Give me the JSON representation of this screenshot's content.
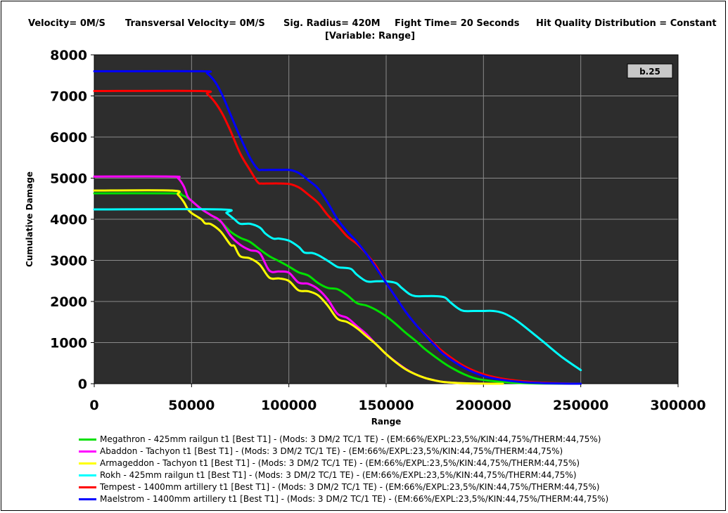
{
  "header": {
    "velocity": "Velocity= 0M/S",
    "transversal": "Transversal Velocity= 0M/S",
    "sig_radius": "Sig. Radius= 420M",
    "fight_time": "Fight Time= 20 Seconds",
    "hit_quality": "Hit Quality Distribution = Constant",
    "variable": "[Variable: Range]"
  },
  "chart_data": {
    "type": "line",
    "title": "",
    "xlabel": "Range",
    "ylabel": "Cumulative Damage",
    "xlim": [
      0,
      300000
    ],
    "ylim": [
      0,
      8000
    ],
    "xticks": [
      0,
      50000,
      100000,
      150000,
      200000,
      250000,
      300000
    ],
    "yticks": [
      0,
      1000,
      2000,
      3000,
      4000,
      5000,
      6000,
      7000,
      8000
    ],
    "grid": true,
    "legend_position": "bottom",
    "annotation": "b.25",
    "series": [
      {
        "name": "Megathron - 425mm railgun t1 [Best T1] - (Mods: 3 DM/2 TC/1 TE) - (EM:66%/EXPL:23,5%/KIN:44,75%/THERM:44,75%)",
        "color": "#00e000",
        "x": [
          0,
          40000,
          45000,
          50000,
          55000,
          60000,
          65000,
          70000,
          75000,
          80000,
          85000,
          90000,
          95000,
          100000,
          105000,
          110000,
          115000,
          120000,
          125000,
          130000,
          135000,
          140000,
          145000,
          150000,
          155000,
          160000,
          165000,
          170000,
          175000,
          180000,
          185000,
          190000,
          195000,
          200000,
          210000,
          220000,
          230000,
          240000,
          250000
        ],
        "y": [
          4630,
          4630,
          4590,
          4450,
          4250,
          4100,
          3940,
          3700,
          3550,
          3450,
          3270,
          3100,
          2980,
          2850,
          2710,
          2630,
          2450,
          2330,
          2300,
          2150,
          1960,
          1900,
          1790,
          1640,
          1450,
          1240,
          1050,
          840,
          660,
          490,
          350,
          230,
          140,
          90,
          40,
          15,
          5,
          2,
          0
        ]
      },
      {
        "name": "Abaddon - Tachyon t1 [Best T1] - (Mods: 3 DM/2 TC/1 TE) - (EM:66%/EXPL:23,5%/KIN:44,75%/THERM:44,75%)",
        "color": "#ff00ff",
        "x": [
          0,
          40000,
          43000,
          46000,
          48000,
          50000,
          55000,
          60000,
          65000,
          70000,
          75000,
          80000,
          85000,
          90000,
          95000,
          100000,
          105000,
          110000,
          115000,
          120000,
          125000,
          130000,
          135000,
          140000,
          145000,
          150000,
          155000,
          160000,
          165000,
          170000,
          175000,
          180000,
          190000,
          200000,
          210000
        ],
        "y": [
          5040,
          5040,
          5000,
          4800,
          4550,
          4450,
          4250,
          4100,
          3950,
          3600,
          3380,
          3250,
          3180,
          2750,
          2730,
          2700,
          2460,
          2430,
          2300,
          2050,
          1700,
          1600,
          1400,
          1200,
          950,
          720,
          530,
          360,
          230,
          140,
          80,
          40,
          10,
          2,
          0
        ]
      },
      {
        "name": "Armageddon - Tachyon t1 [Best T1] - (Mods: 3 DM/2 TC/1 TE) - (EM:66%/EXPL:23,5%/KIN:44,75%/THERM:44,75%)",
        "color": "#ffff00",
        "x": [
          0,
          40000,
          43000,
          46000,
          48000,
          50000,
          55000,
          57000,
          60000,
          65000,
          70000,
          72000,
          75000,
          80000,
          85000,
          90000,
          95000,
          100000,
          105000,
          110000,
          115000,
          120000,
          125000,
          130000,
          135000,
          140000,
          145000,
          150000,
          155000,
          160000,
          165000,
          170000,
          175000,
          180000,
          190000,
          200000,
          210000
        ],
        "y": [
          4700,
          4700,
          4600,
          4420,
          4250,
          4150,
          4000,
          3900,
          3880,
          3700,
          3380,
          3350,
          3100,
          3050,
          2900,
          2580,
          2560,
          2500,
          2270,
          2250,
          2150,
          1900,
          1580,
          1500,
          1350,
          1150,
          950,
          720,
          520,
          350,
          230,
          140,
          80,
          40,
          10,
          2,
          0
        ]
      },
      {
        "name": "Rokh - 425mm railgun t1 [Best T1] - (Mods: 3 DM/2 TC/1 TE) - (EM:66%/EXPL:23,5%/KIN:44,75%/THERM:44,75%)",
        "color": "#00ffff",
        "x": [
          0,
          65000,
          68000,
          72000,
          75000,
          80000,
          85000,
          88000,
          92000,
          95000,
          100000,
          105000,
          108000,
          112000,
          115000,
          120000,
          125000,
          128000,
          132000,
          135000,
          140000,
          145000,
          150000,
          155000,
          158000,
          162000,
          165000,
          170000,
          175000,
          180000,
          183000,
          187000,
          190000,
          195000,
          200000,
          205000,
          210000,
          215000,
          220000,
          230000,
          240000,
          250000
        ],
        "y": [
          4240,
          4240,
          4150,
          4000,
          3890,
          3890,
          3800,
          3650,
          3530,
          3530,
          3480,
          3330,
          3190,
          3180,
          3130,
          2990,
          2840,
          2820,
          2790,
          2650,
          2490,
          2490,
          2490,
          2450,
          2330,
          2180,
          2130,
          2130,
          2130,
          2100,
          1980,
          1830,
          1770,
          1770,
          1770,
          1770,
          1720,
          1600,
          1430,
          1050,
          660,
          330
        ]
      },
      {
        "name": "Tempest - 1400mm artillery t1 [Best T1] - (Mods: 3 DM/2 TC/1 TE) - (EM:66%/EXPL:23,5%/KIN:44,75%/THERM:44,75%)",
        "color": "#ff0000",
        "x": [
          0,
          55000,
          58000,
          62000,
          66000,
          70000,
          75000,
          80000,
          84000,
          86000,
          90000,
          95000,
          100000,
          103000,
          106000,
          110000,
          115000,
          120000,
          125000,
          130000,
          135000,
          140000,
          145000,
          150000,
          155000,
          160000,
          165000,
          170000,
          175000,
          180000,
          190000,
          200000,
          210000,
          220000,
          230000,
          240000,
          250000
        ],
        "y": [
          7120,
          7120,
          7050,
          6850,
          6550,
          6150,
          5600,
          5200,
          4900,
          4870,
          4870,
          4870,
          4860,
          4820,
          4750,
          4600,
          4400,
          4100,
          3850,
          3580,
          3400,
          3150,
          2850,
          2450,
          2100,
          1750,
          1450,
          1200,
          960,
          750,
          430,
          230,
          120,
          60,
          25,
          8,
          0
        ]
      },
      {
        "name": "Maelstrom - 1400mm artillery t1 [Best T1] - (Mods: 3 DM/2 TC/1 TE) - (EM:66%/EXPL:23,5%/KIN:44,75%/THERM:44,75%)",
        "color": "#0000ff",
        "x": [
          0,
          55000,
          58000,
          62000,
          66000,
          70000,
          75000,
          80000,
          84000,
          86000,
          90000,
          95000,
          100000,
          103000,
          106000,
          110000,
          115000,
          120000,
          125000,
          130000,
          135000,
          140000,
          145000,
          150000,
          155000,
          160000,
          165000,
          170000,
          175000,
          180000,
          190000,
          200000,
          210000,
          220000,
          230000,
          240000,
          250000
        ],
        "y": [
          7600,
          7600,
          7550,
          7350,
          7000,
          6550,
          6000,
          5500,
          5220,
          5200,
          5200,
          5200,
          5200,
          5170,
          5100,
          4950,
          4750,
          4400,
          4000,
          3700,
          3450,
          3150,
          2800,
          2450,
          2100,
          1750,
          1450,
          1180,
          930,
          700,
          390,
          190,
          90,
          40,
          15,
          5,
          0
        ]
      }
    ]
  }
}
